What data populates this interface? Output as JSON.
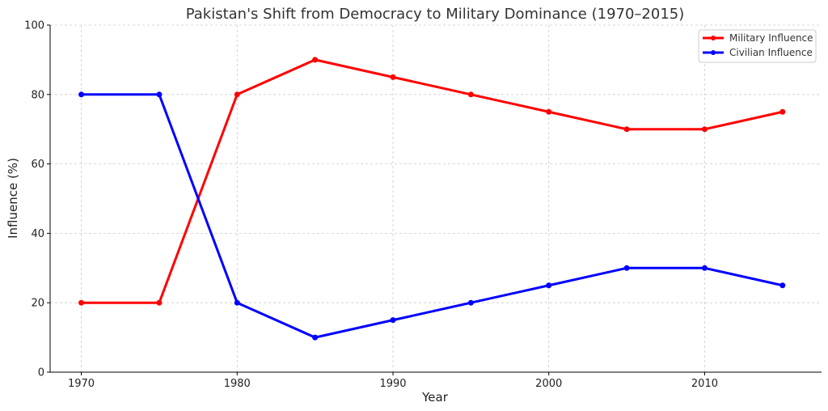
{
  "chart_data": {
    "type": "line",
    "title": "Pakistan's Shift from Democracy to Military Dominance (1970–2015)",
    "xlabel": "Year",
    "ylabel": "Influence (%)",
    "xlim": [
      1968,
      2017.5
    ],
    "ylim": [
      0,
      100
    ],
    "x": [
      1970,
      1975,
      1980,
      1985,
      1990,
      1995,
      2000,
      2005,
      2010,
      2015
    ],
    "xticks": [
      1970,
      1980,
      1990,
      2000,
      2010
    ],
    "yticks": [
      0,
      20,
      40,
      60,
      80,
      100
    ],
    "grid": true,
    "legend_position": "top-right",
    "series": [
      {
        "name": "Military Influence",
        "color": "#ff0000",
        "values": [
          20,
          20,
          80,
          90,
          85,
          80,
          75,
          70,
          70,
          75
        ]
      },
      {
        "name": "Civilian Influence",
        "color": "#0000ff",
        "values": [
          80,
          80,
          20,
          10,
          15,
          20,
          25,
          30,
          30,
          25
        ]
      }
    ]
  }
}
